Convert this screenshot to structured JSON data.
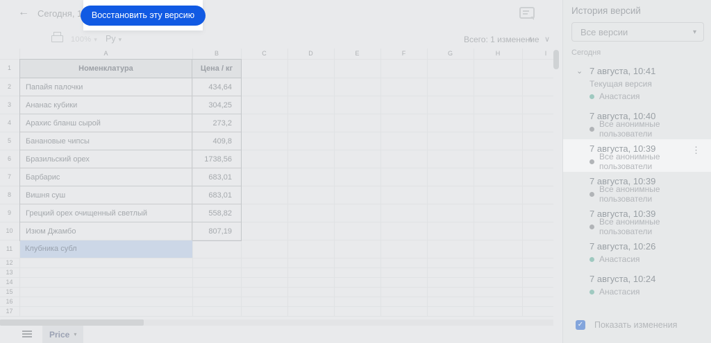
{
  "topbar": {
    "timestamp": "Сегодня, 10:39",
    "restore_button": "Восстановить эту версию"
  },
  "toolbar": {
    "zoom_value": "100%",
    "currency_label": "Ру",
    "changes_summary": "Всего: 1 изменение"
  },
  "spreadsheet": {
    "column_headers": [
      "A",
      "B",
      "C",
      "D",
      "E",
      "F",
      "G",
      "H",
      "I"
    ],
    "row_numbers": [
      "1",
      "2",
      "3",
      "4",
      "5",
      "6",
      "7",
      "8",
      "9",
      "10",
      "11",
      "12",
      "13",
      "14",
      "15",
      "16",
      "17"
    ],
    "table": {
      "headers": [
        "Номенклатура",
        "Цена / кг"
      ],
      "rows": [
        {
          "name": "Папайя палочки",
          "price": "434,64"
        },
        {
          "name": "Ананас кубики",
          "price": "304,25"
        },
        {
          "name": "Арахис бланш сырой",
          "price": "273,2"
        },
        {
          "name": "Банановые чипсы",
          "price": "409,8"
        },
        {
          "name": "Бразильский орех",
          "price": "1738,56"
        },
        {
          "name": "Барбарис",
          "price": "683,01"
        },
        {
          "name": "Вишня суш",
          "price": "683,01"
        },
        {
          "name": "Грецкий орех очищенный светлый",
          "price": "558,82"
        },
        {
          "name": "Изюм Джамбо",
          "price": "807,19"
        }
      ],
      "changed_cell_value": "Клубника субл"
    },
    "sheet_tab": "Price"
  },
  "sidebar": {
    "title": "История версий",
    "filter_value": "Все версии",
    "section_label": "Сегодня",
    "versions": [
      {
        "time": "7 августа, 10:41",
        "note": "Текущая версия",
        "author": "Анастасия",
        "author_color": "teal",
        "expanded": true,
        "selected": false
      },
      {
        "time": "7 августа, 10:40",
        "note": "",
        "author": "Все анонимные пользователи",
        "author_color": "gray",
        "expanded": false,
        "selected": false
      },
      {
        "time": "7 августа, 10:39",
        "note": "",
        "author": "Все анонимные пользователи",
        "author_color": "gray",
        "expanded": false,
        "selected": true
      },
      {
        "time": "7 августа, 10:39",
        "note": "",
        "author": "Все анонимные пользователи",
        "author_color": "gray",
        "expanded": false,
        "selected": false
      },
      {
        "time": "7 августа, 10:39",
        "note": "",
        "author": "Все анонимные пользователи",
        "author_color": "gray",
        "expanded": false,
        "selected": false
      },
      {
        "time": "7 августа, 10:26",
        "note": "",
        "author": "Анастасия",
        "author_color": "teal",
        "expanded": false,
        "selected": false
      },
      {
        "time": "7 августа, 10:24",
        "note": "",
        "author": "Анастасия",
        "author_color": "teal",
        "expanded": false,
        "selected": false
      }
    ],
    "show_changes_label": "Показать изменения",
    "show_changes_checked": true
  },
  "icons": {
    "back": "←",
    "chevron_down": "▾",
    "collapse": "⌄",
    "nav_up": "∧",
    "nav_down": "∨",
    "kebab": "⋮",
    "check": "✓"
  },
  "colors": {
    "accent_blue": "#115ae3",
    "change_highlight": "#ccd7e7",
    "author_teal": "#9fc9c0",
    "author_gray": "#b1b4b7",
    "checkbox_blue": "#83a5dc"
  }
}
